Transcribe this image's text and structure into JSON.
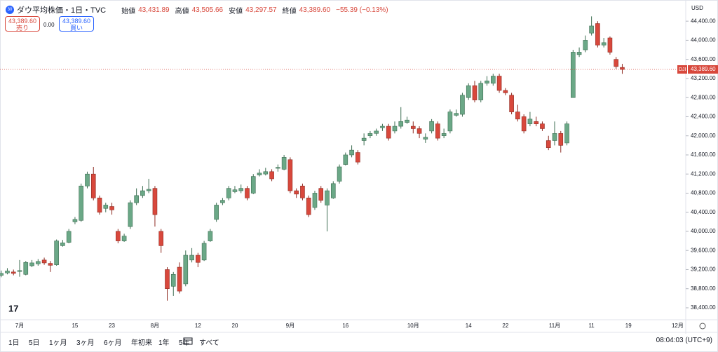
{
  "header": {
    "symbol": "ダウ平均株価・1日・TVC",
    "open_label": "始値",
    "open": "43,431.89",
    "high_label": "高値",
    "high": "43,505.66",
    "low_label": "安値",
    "low": "43,297.57",
    "close_label": "終値",
    "close": "43,389.60",
    "change": "−55.39 (−0.13%)",
    "sell_price": "43,389.60",
    "sell_label": "売り",
    "spread": "0.00",
    "buy_price": "43,389.60",
    "buy_label": "買い",
    "currency": "USD",
    "price_tag": "DJI"
  },
  "toolbar": {
    "ranges": [
      "1日",
      "5日",
      "1ヶ月",
      "3ヶ月",
      "6ヶ月",
      "年初来",
      "1年",
      "5年",
      "すべて"
    ],
    "clock": "08:04:03 (UTC+9)"
  },
  "chart_data": {
    "type": "candlestick",
    "up_color": "#6ba887",
    "down_color": "#d8483c",
    "categories": [
      null,
      null,
      null,
      "7月",
      null,
      null,
      null,
      null,
      null,
      null,
      null,
      null,
      "15",
      null,
      null,
      null,
      null,
      null,
      "23",
      null,
      null,
      null,
      null,
      null,
      null,
      "8月",
      null,
      null,
      null,
      null,
      null,
      null,
      "12",
      null,
      null,
      null,
      null,
      null,
      "20",
      null,
      null,
      null,
      null,
      null,
      null,
      null,
      null,
      "9月",
      null,
      null,
      null,
      null,
      null,
      null,
      null,
      null,
      "16",
      null,
      null,
      null,
      null,
      null,
      null,
      null,
      null,
      null,
      null,
      "10月",
      null,
      null,
      null,
      null,
      null,
      null,
      null,
      null,
      "14",
      null,
      null,
      null,
      null,
      null,
      "22",
      null,
      null,
      null,
      null,
      null,
      null,
      null,
      "11月",
      null,
      null,
      null,
      null,
      null,
      "11",
      null,
      null,
      null,
      null,
      null,
      "19",
      null,
      null,
      null,
      null,
      null,
      null,
      null,
      "12月",
      null
    ],
    "open": [
      39080,
      39130,
      39150,
      39160,
      39100,
      39280,
      39320,
      39400,
      39330,
      39300,
      39700,
      39770,
      40200,
      40230,
      40950,
      41200,
      40700,
      40480,
      40520,
      40000,
      39800,
      40100,
      40600,
      40750,
      40850,
      40900,
      40000,
      39200,
      38850,
      39250,
      38900,
      39400,
      39500,
      39400,
      39800,
      40250,
      40600,
      40700,
      40830,
      40850,
      40900,
      40800,
      41180,
      41200,
      41250,
      41320,
      41300,
      41500,
      40850,
      40950,
      40700,
      40500,
      40900,
      40550,
      40700,
      41050,
      41400,
      41600,
      41650,
      41900,
      42000,
      42050,
      42170,
      42200,
      42100,
      42200,
      42280,
      42200,
      42150,
      41930,
      42100,
      42250,
      42000,
      42100,
      42430,
      42450,
      42800,
      43050,
      42750,
      43100,
      43100,
      43250,
      42950,
      42850,
      42500,
      42400,
      42250,
      42300,
      42250,
      41900,
      41900,
      42050,
      41850,
      42800,
      43700,
      43800,
      44150,
      44350,
      43900,
      44050,
      43600,
      43431.89,
      null,
      null,
      null,
      null,
      null,
      null,
      null,
      null,
      null,
      null
    ],
    "high": [
      39180,
      39230,
      39200,
      39400,
      39380,
      39400,
      39420,
      39450,
      39380,
      39830,
      39820,
      40050,
      40300,
      41000,
      41250,
      41350,
      40750,
      40600,
      40600,
      40050,
      39950,
      40650,
      40900,
      40950,
      41100,
      40950,
      40050,
      39250,
      39150,
      39350,
      39600,
      39650,
      39550,
      39800,
      40050,
      40600,
      40700,
      40950,
      40950,
      40980,
      40950,
      41200,
      41300,
      41330,
      41300,
      41400,
      41600,
      41550,
      40900,
      41000,
      40750,
      40850,
      40950,
      40900,
      41050,
      41400,
      41650,
      41800,
      41700,
      42050,
      42100,
      42150,
      42250,
      42250,
      42300,
      42600,
      42400,
      42300,
      42200,
      42050,
      42350,
      42300,
      42150,
      42550,
      42550,
      42900,
      43100,
      43150,
      43150,
      43250,
      43300,
      43300,
      43000,
      42900,
      42650,
      42450,
      42500,
      42400,
      42300,
      42000,
      42300,
      42100,
      42300,
      43800,
      43850,
      44100,
      44500,
      44400,
      44050,
      44080,
      43650,
      43505.66,
      null,
      null,
      null,
      null,
      null,
      null,
      null,
      null,
      null,
      null
    ],
    "low": [
      39040,
      39100,
      39080,
      39050,
      39080,
      39250,
      39280,
      39300,
      39150,
      39280,
      39680,
      39750,
      40150,
      40200,
      40900,
      40650,
      40350,
      40400,
      40350,
      39750,
      39780,
      40050,
      40550,
      40700,
      40800,
      40100,
      39550,
      38550,
      38650,
      38700,
      38850,
      39350,
      39250,
      39380,
      39780,
      40200,
      40550,
      40650,
      40800,
      40800,
      40650,
      40780,
      41150,
      41170,
      41050,
      41250,
      41280,
      40800,
      40700,
      40650,
      40300,
      40450,
      40600,
      40000,
      40680,
      41000,
      41380,
      41550,
      41400,
      41800,
      41950,
      42000,
      42100,
      41900,
      42050,
      42150,
      42250,
      42050,
      41950,
      41850,
      42050,
      41900,
      41950,
      42050,
      42400,
      42400,
      42750,
      42700,
      42700,
      43050,
      43050,
      42900,
      42850,
      42450,
      42300,
      42050,
      42200,
      42200,
      42100,
      41700,
      41800,
      41650,
      41800,
      42800,
      43650,
      43750,
      44100,
      43850,
      43850,
      43700,
      43400,
      43297.57,
      null,
      null,
      null,
      null,
      null,
      null,
      null,
      null,
      null,
      null
    ],
    "close": [
      39120,
      39170,
      39120,
      39180,
      39350,
      39340,
      39370,
      39340,
      39290,
      39800,
      39760,
      40000,
      40250,
      40950,
      41200,
      40700,
      40400,
      40550,
      40450,
      39800,
      39900,
      40600,
      40750,
      40850,
      40880,
      40350,
      39700,
      38800,
      39100,
      38750,
      39500,
      39500,
      39350,
      39750,
      40000,
      40550,
      40650,
      40900,
      40870,
      40900,
      40700,
      41150,
      41220,
      41250,
      41100,
      41340,
      41550,
      40850,
      40780,
      40700,
      40350,
      40800,
      40650,
      40850,
      41000,
      41350,
      41600,
      41700,
      41450,
      41950,
      42050,
      42100,
      42200,
      41950,
      42200,
      42300,
      42330,
      42150,
      42050,
      41970,
      42300,
      41950,
      42050,
      42500,
      42470,
      42850,
      43050,
      42750,
      43100,
      43150,
      43250,
      42950,
      42900,
      42500,
      42350,
      42100,
      42350,
      42250,
      42150,
      41750,
      42050,
      41800,
      42250,
      43750,
      43750,
      44000,
      44300,
      43900,
      43950,
      43750,
      43450,
      43389.6,
      null,
      null,
      null,
      null,
      null,
      null,
      null,
      null,
      null,
      null
    ],
    "last_price": {
      "value": 43389.6,
      "label": "43,389.60"
    },
    "ylim": [
      38150,
      44520
    ],
    "yticks": [
      {
        "value": 38400,
        "label": "38,400.00"
      },
      {
        "value": 38800,
        "label": "38,800.00"
      },
      {
        "value": 39200,
        "label": "39,200.00"
      },
      {
        "value": 39600,
        "label": "39,600.00"
      },
      {
        "value": 40000,
        "label": "40,000.00"
      },
      {
        "value": 40400,
        "label": "40,400.00"
      },
      {
        "value": 40800,
        "label": "40,800.00"
      },
      {
        "value": 41200,
        "label": "41,200.00"
      },
      {
        "value": 41600,
        "label": "41,600.00"
      },
      {
        "value": 42000,
        "label": "42,000.00"
      },
      {
        "value": 42400,
        "label": "42,400.00"
      },
      {
        "value": 42800,
        "label": "42,800.00"
      },
      {
        "value": 43200,
        "label": "43,200.00"
      },
      {
        "value": 43600,
        "label": "43,600.00"
      },
      {
        "value": 44000,
        "label": "44,000.00"
      },
      {
        "value": 44400,
        "label": "44,400.00"
      }
    ],
    "grid": false
  }
}
